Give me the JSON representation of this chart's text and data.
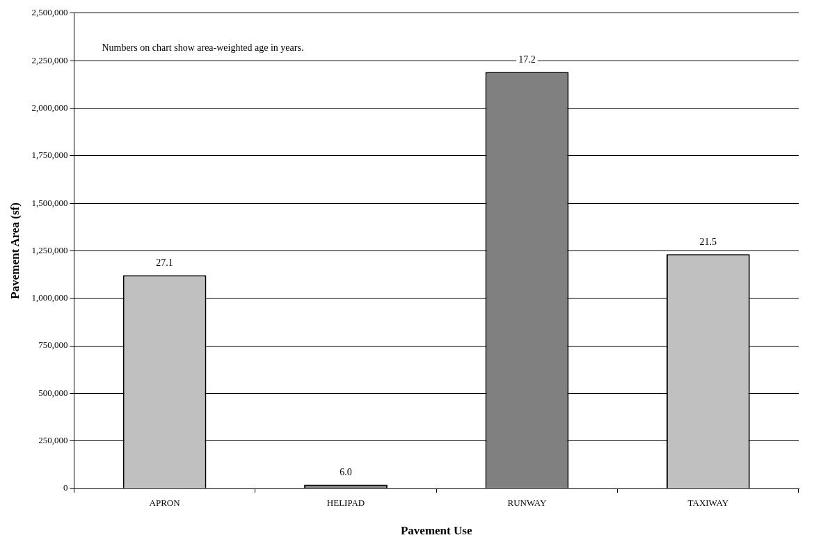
{
  "chart_data": {
    "type": "bar",
    "xlabel": "Pavement Use",
    "ylabel": "Pavement Area (sf)",
    "categories": [
      "APRON",
      "HELIPAD",
      "RUNWAY",
      "TAXIWAY"
    ],
    "values": [
      1122000,
      20000,
      2190000,
      1232000
    ],
    "colors": [
      "#c0c0c0",
      "#808080",
      "#808080",
      "#c0c0c0"
    ],
    "ylim": [
      0,
      2500000
    ],
    "yticks": [
      {
        "value": 0,
        "label": "0"
      },
      {
        "value": 250000,
        "label": "250,000"
      },
      {
        "value": 500000,
        "label": "500,000"
      },
      {
        "value": 750000,
        "label": "750,000"
      },
      {
        "value": 1000000,
        "label": "1,000,000"
      },
      {
        "value": 1250000,
        "label": "1,250,000"
      },
      {
        "value": 1500000,
        "label": "1,500,000"
      },
      {
        "value": 1750000,
        "label": "1,750,000"
      },
      {
        "value": 2000000,
        "label": "2,000,000"
      },
      {
        "value": 2250000,
        "label": "2,250,000"
      },
      {
        "value": 2500000,
        "label": "2,500,000"
      }
    ],
    "grid": "y",
    "legend": false,
    "annotations": [
      "Numbers on chart show area-weighted age in years.",
      {
        "text": "27.1",
        "x": "APRON",
        "y": 1122000
      },
      {
        "text": "6.0",
        "x": "HELIPAD",
        "y": 20000
      },
      {
        "text": "17.2",
        "x": "RUNWAY",
        "y": 2190000
      },
      {
        "text": "21.5",
        "x": "TAXIWAY",
        "y": 1232000
      }
    ]
  }
}
